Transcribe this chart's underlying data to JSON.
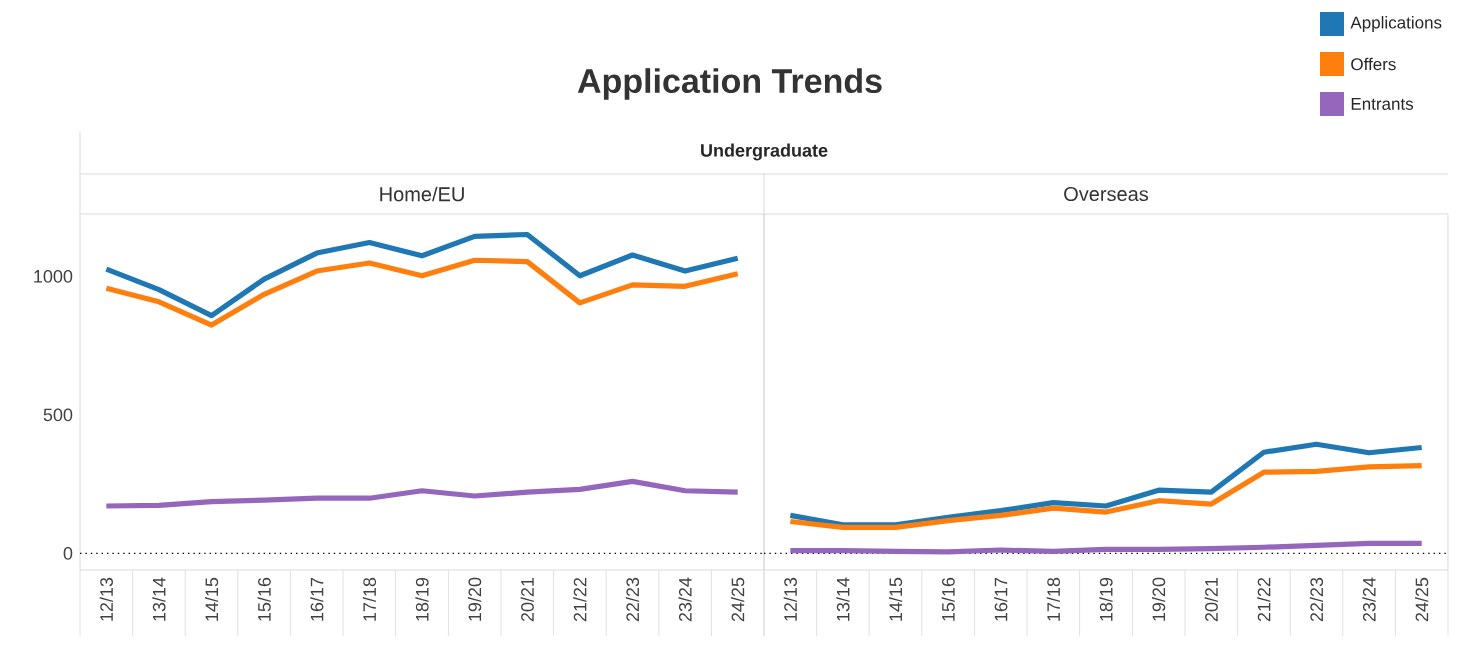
{
  "chart_data": [
    {
      "type": "line",
      "title": "Application Trends",
      "subtitle": "Home/EU",
      "annotations": [
        "Undergraduate"
      ],
      "categories": [
        "12/13",
        "13/14",
        "14/15",
        "15/16",
        "16/17",
        "17/18",
        "18/19",
        "19/20",
        "20/21",
        "21/22",
        "22/23",
        "23/24",
        "24/25"
      ],
      "series": [
        {
          "name": "Applications",
          "color": "#1f77b4",
          "values": [
            1026,
            952,
            858,
            990,
            1084,
            1122,
            1074,
            1144,
            1151,
            1002,
            1077,
            1019,
            1065
          ]
        },
        {
          "name": "Offers",
          "color": "#ff7f0e",
          "values": [
            957,
            908,
            824,
            935,
            1019,
            1048,
            1002,
            1058,
            1053,
            904,
            969,
            964,
            1009
          ]
        },
        {
          "name": "Entrants",
          "color": "#9467bd",
          "values": [
            171,
            173,
            187,
            192,
            199,
            199,
            226,
            207,
            221,
            231,
            260,
            226,
            221
          ]
        }
      ],
      "ylim": [
        -60,
        1225
      ],
      "yticks": [
        0,
        500,
        1000
      ],
      "legend": "top right",
      "ref_lines": [
        {
          "axis": "y",
          "value": 0,
          "line_style": "dotted"
        }
      ]
    },
    {
      "type": "line",
      "subtitle": "Overseas",
      "categories": [
        "12/13",
        "13/14",
        "14/15",
        "15/16",
        "16/17",
        "17/18",
        "18/19",
        "19/20",
        "20/21",
        "21/22",
        "22/23",
        "23/24",
        "24/25"
      ],
      "series": [
        {
          "color": "#1f77b4",
          "values": [
            137,
            103,
            103,
            130,
            154,
            183,
            171,
            228,
            221,
            365,
            394,
            363,
            382
          ]
        },
        {
          "color": "#ff7f0e",
          "values": [
            115,
            94,
            94,
            118,
            137,
            163,
            149,
            190,
            178,
            293,
            296,
            312,
            317
          ]
        },
        {
          "color": "#9467bd",
          "values": [
            10,
            10,
            7,
            5,
            12,
            7,
            14,
            14,
            17,
            22,
            29,
            36,
            36
          ]
        }
      ],
      "ylim": [
        -60,
        1225
      ],
      "yticks": [
        0,
        500,
        1000
      ],
      "tick_labels": "x",
      "ref_lines": [
        {
          "axis": "y",
          "value": 0,
          "line_style": "dotted"
        }
      ]
    }
  ]
}
